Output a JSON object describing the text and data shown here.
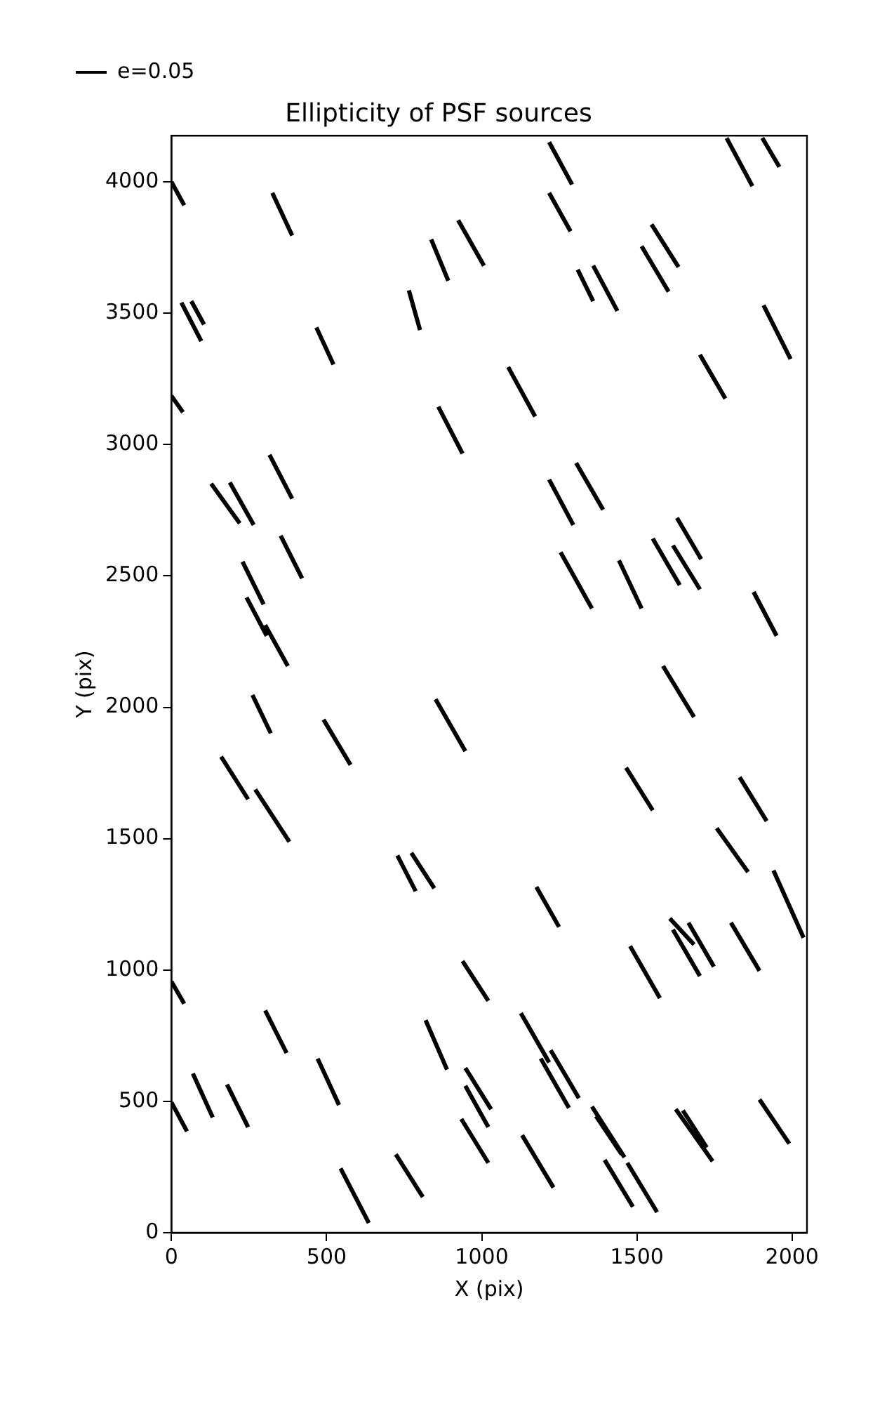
{
  "chart_data": {
    "type": "line",
    "title": "Ellipticity of PSF sources",
    "xlabel": "X (pix)",
    "ylabel": "Y (pix)",
    "xlim": [
      0,
      2048
    ],
    "ylim": [
      0,
      4176
    ],
    "xticks": [
      0,
      500,
      1000,
      1500,
      2000
    ],
    "yticks": [
      0,
      500,
      1000,
      1500,
      2000,
      2500,
      3000,
      3500,
      4000
    ],
    "grid": false,
    "legend": "top left",
    "marker": "none",
    "line_style": "solid",
    "color": "#000000",
    "series": [
      {
        "name": "e=0.05",
        "x": [
          0,
          41
        ],
        "values": [
          4000,
          3911
        ]
      },
      {
        "x": [
          325,
          389
        ],
        "values": [
          3958,
          3796
        ]
      },
      {
        "x": [
          0,
          37
        ],
        "values": [
          3185,
          3123
        ]
      },
      {
        "x": [
          32,
          96
        ],
        "values": [
          3540,
          3394
        ]
      },
      {
        "x": [
          64,
          105
        ],
        "values": [
          3546,
          3457
        ]
      },
      {
        "x": [
          467,
          522
        ],
        "values": [
          3446,
          3305
        ]
      },
      {
        "x": [
          128,
          220
        ],
        "values": [
          2851,
          2700
        ]
      },
      {
        "x": [
          188,
          265
        ],
        "values": [
          2856,
          2694
        ]
      },
      {
        "x": [
          316,
          389
        ],
        "values": [
          2961,
          2794
        ]
      },
      {
        "x": [
          352,
          421
        ],
        "values": [
          2653,
          2491
        ]
      },
      {
        "x": [
          229,
          297
        ],
        "values": [
          2554,
          2392
        ]
      },
      {
        "x": [
          242,
          307
        ],
        "values": [
          2418,
          2272
        ]
      },
      {
        "x": [
          302,
          375
        ],
        "values": [
          2313,
          2157
        ]
      },
      {
        "x": [
          261,
          320
        ],
        "values": [
          2047,
          1901
        ]
      },
      {
        "x": [
          490,
          577
        ],
        "values": [
          1953,
          1781
        ]
      },
      {
        "x": [
          160,
          247
        ],
        "values": [
          1812,
          1650
        ]
      },
      {
        "x": [
          270,
          380
        ],
        "values": [
          1687,
          1488
        ]
      },
      {
        "x": [
          728,
          787
        ],
        "values": [
          1436,
          1300
        ]
      },
      {
        "x": [
          773,
          847
        ],
        "values": [
          1446,
          1311
        ]
      },
      {
        "x": [
          0,
          41
        ],
        "values": [
          956,
          872
        ]
      },
      {
        "x": [
          302,
          371
        ],
        "values": [
          846,
          684
        ]
      },
      {
        "x": [
          471,
          540
        ],
        "values": [
          663,
          486
        ]
      },
      {
        "x": [
          69,
          133
        ],
        "values": [
          606,
          439
        ]
      },
      {
        "x": [
          179,
          247
        ],
        "values": [
          564,
          402
        ]
      },
      {
        "x": [
          0,
          50
        ],
        "values": [
          496,
          386
        ]
      },
      {
        "x": [
          545,
          636
        ],
        "values": [
          245,
          37
        ]
      },
      {
        "x": [
          723,
          810
        ],
        "values": [
          298,
          136
        ]
      },
      {
        "x": [
          819,
          888
        ],
        "values": [
          809,
          621
        ]
      },
      {
        "x": [
          947,
          1030
        ],
        "values": [
          627,
          470
        ]
      },
      {
        "x": [
          947,
          1021
        ],
        "values": [
          559,
          402
        ]
      },
      {
        "x": [
          934,
          1021
        ],
        "values": [
          433,
          266
        ]
      },
      {
        "x": [
          938,
          1021
        ],
        "values": [
          1034,
          883
        ]
      },
      {
        "x": [
          851,
          947
        ],
        "values": [
          2031,
          1833
        ]
      },
      {
        "x": [
          860,
          938
        ],
        "values": [
          3144,
          2966
        ]
      },
      {
        "x": [
          837,
          892
        ],
        "values": [
          3781,
          3624
        ]
      },
      {
        "x": [
          924,
          1007
        ],
        "values": [
          3854,
          3681
        ]
      },
      {
        "x": [
          765,
          801
        ],
        "values": [
          3587,
          3436
        ]
      },
      {
        "x": [
          1217,
          1291
        ],
        "values": [
          4151,
          3990
        ]
      },
      {
        "x": [
          1217,
          1286
        ],
        "values": [
          3958,
          3812
        ]
      },
      {
        "x": [
          1085,
          1172
        ],
        "values": [
          3295,
          3107
        ]
      },
      {
        "x": [
          1309,
          1359
        ],
        "values": [
          3666,
          3546
        ]
      },
      {
        "x": [
          1359,
          1437
        ],
        "values": [
          3681,
          3509
        ]
      },
      {
        "x": [
          1515,
          1602
        ],
        "values": [
          3755,
          3582
        ]
      },
      {
        "x": [
          1547,
          1634
        ],
        "values": [
          3838,
          3676
        ]
      },
      {
        "x": [
          1789,
          1872
        ],
        "values": [
          4167,
          3984
        ]
      },
      {
        "x": [
          1904,
          1959
        ],
        "values": [
          4167,
          4057
        ]
      },
      {
        "x": [
          1908,
          1995
        ],
        "values": [
          3530,
          3326
        ]
      },
      {
        "x": [
          1703,
          1785
        ],
        "values": [
          3342,
          3175
        ]
      },
      {
        "x": [
          1217,
          1295
        ],
        "values": [
          2867,
          2694
        ]
      },
      {
        "x": [
          1304,
          1391
        ],
        "values": [
          2930,
          2752
        ]
      },
      {
        "x": [
          1254,
          1355
        ],
        "values": [
          2590,
          2376
        ]
      },
      {
        "x": [
          1442,
          1515
        ],
        "values": [
          2559,
          2376
        ]
      },
      {
        "x": [
          1551,
          1638
        ],
        "values": [
          2642,
          2465
        ]
      },
      {
        "x": [
          1616,
          1703
        ],
        "values": [
          2616,
          2449
        ]
      },
      {
        "x": [
          1629,
          1707
        ],
        "values": [
          2721,
          2564
        ]
      },
      {
        "x": [
          1876,
          1950
        ],
        "values": [
          2439,
          2272
        ]
      },
      {
        "x": [
          1584,
          1684
        ],
        "values": [
          2157,
          1963
        ]
      },
      {
        "x": [
          1465,
          1551
        ],
        "values": [
          1770,
          1608
        ]
      },
      {
        "x": [
          1831,
          1918
        ],
        "values": [
          1734,
          1567
        ]
      },
      {
        "x": [
          1757,
          1858
        ],
        "values": [
          1540,
          1373
        ]
      },
      {
        "x": [
          1940,
          2037
        ],
        "values": [
          1379,
          1123
        ]
      },
      {
        "x": [
          1176,
          1249
        ],
        "values": [
          1316,
          1164
        ]
      },
      {
        "x": [
          1606,
          1684
        ],
        "values": [
          1196,
          1097
        ]
      },
      {
        "x": [
          1616,
          1703
        ],
        "values": [
          1154,
          977
        ]
      },
      {
        "x": [
          1666,
          1748
        ],
        "values": [
          1180,
          1013
        ]
      },
      {
        "x": [
          1803,
          1895
        ],
        "values": [
          1180,
          997
        ]
      },
      {
        "x": [
          1478,
          1574
        ],
        "values": [
          1091,
          893
        ]
      },
      {
        "x": [
          1126,
          1217
        ],
        "values": [
          836,
          648
        ]
      },
      {
        "x": [
          1190,
          1281
        ],
        "values": [
          663,
          475
        ]
      },
      {
        "x": [
          1222,
          1313
        ],
        "values": [
          695,
          512
        ]
      },
      {
        "x": [
          1130,
          1231
        ],
        "values": [
          371,
          172
        ]
      },
      {
        "x": [
          1355,
          1460
        ],
        "values": [
          480,
          287
        ]
      },
      {
        "x": [
          1368,
          1451
        ],
        "values": [
          444,
          298
        ]
      },
      {
        "x": [
          1469,
          1565
        ],
        "values": [
          266,
          78
        ]
      },
      {
        "x": [
          1396,
          1487
        ],
        "values": [
          277,
          99
        ]
      },
      {
        "x": [
          1625,
          1744
        ],
        "values": [
          470,
          272
        ]
      },
      {
        "x": [
          1648,
          1725
        ],
        "values": [
          465,
          324
        ]
      },
      {
        "x": [
          1895,
          1991
        ],
        "values": [
          507,
          339
        ]
      }
    ]
  }
}
